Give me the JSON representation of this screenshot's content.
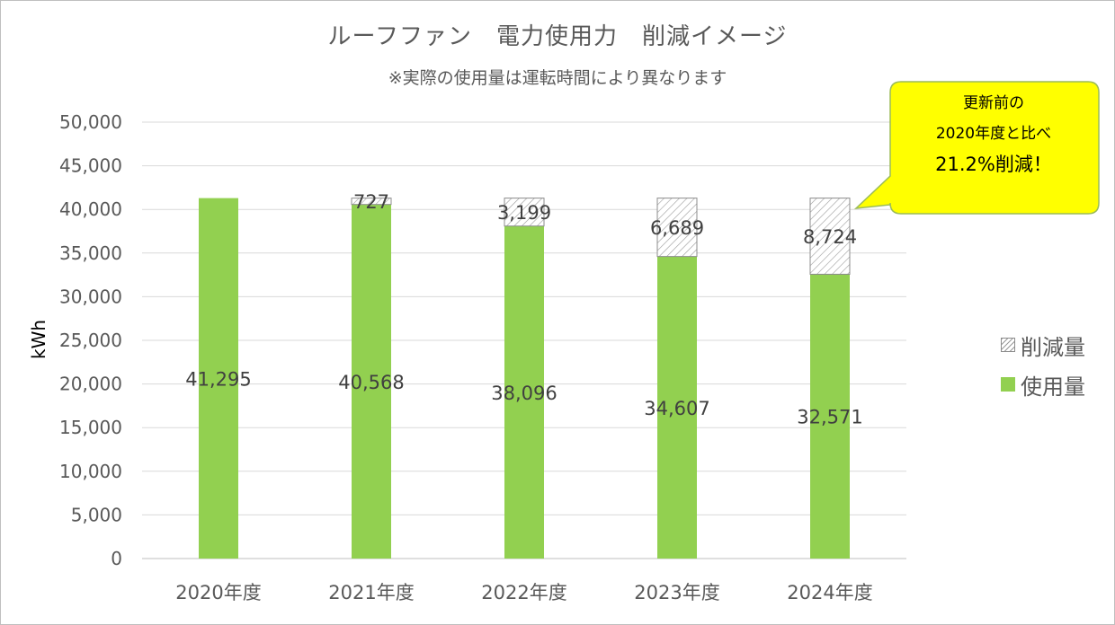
{
  "title": "ルーフファン　電力使用力　削減イメージ",
  "subtitle": "※実際の使用量は運転時間により異なります",
  "chart_data": {
    "type": "bar",
    "stacked": true,
    "categories": [
      "2020年度",
      "2021年度",
      "2022年度",
      "2023年度",
      "2024年度"
    ],
    "series": [
      {
        "name": "使用量",
        "values": [
          41295,
          40568,
          38096,
          34607,
          32571
        ],
        "labels": [
          "41,295",
          "40,568",
          "38,096",
          "34,607",
          "32,571"
        ],
        "color": "#92d050"
      },
      {
        "name": "削減量",
        "values": [
          null,
          727,
          3199,
          6689,
          8724
        ],
        "labels": [
          "",
          "727",
          "3,199",
          "6,689",
          "8,724"
        ],
        "color": "#ffffff",
        "pattern": "hatch"
      }
    ],
    "ylabel": "kWh",
    "ylim": [
      0,
      50000
    ],
    "yticks": [
      0,
      5000,
      10000,
      15000,
      20000,
      25000,
      30000,
      35000,
      40000,
      45000,
      50000
    ],
    "ytick_labels": [
      "0",
      "5,000",
      "10,000",
      "15,000",
      "20,000",
      "25,000",
      "30,000",
      "35,000",
      "40,000",
      "45,000",
      "50,000"
    ],
    "grid": true,
    "legend_position": "right"
  },
  "callout": {
    "line1": "更新前の",
    "line2": "2020年度と比べ",
    "line3": "21.2%削減！",
    "fill": "#ffff00",
    "border": "#9bbb59"
  },
  "colors": {
    "usage_bar": "#92d050",
    "gridline": "#d9d9d9",
    "text": "#595959"
  }
}
